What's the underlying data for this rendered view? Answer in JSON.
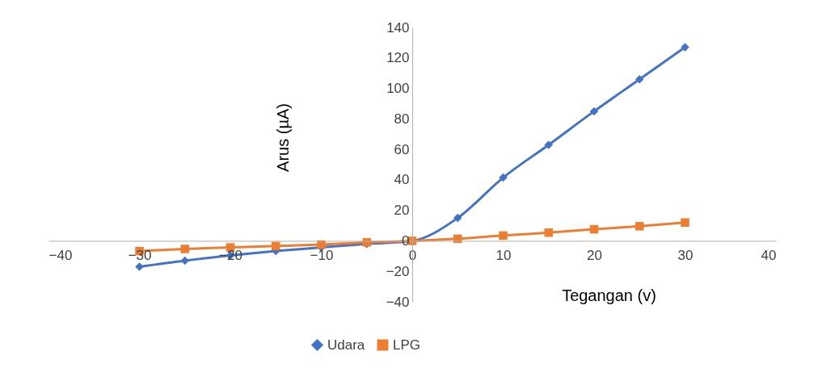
{
  "chart_data": {
    "type": "line",
    "xlabel": "Tegangan (v)",
    "ylabel": "Arus (µA)",
    "x": [
      -30,
      -25,
      -20,
      -15,
      -10,
      -5,
      0,
      5,
      10,
      15,
      20,
      25,
      30
    ],
    "series": [
      {
        "name": "Udara",
        "color": "#4472c4",
        "marker": "diamond",
        "values": [
          -17,
          -13,
          -9.6,
          -6.7,
          -4.3,
          -2,
          0,
          15,
          41.5,
          63,
          85,
          106,
          127
        ]
      },
      {
        "name": "LPG",
        "color": "#ed7d31",
        "marker": "square",
        "values": [
          -6.7,
          -5.3,
          -4.3,
          -3.4,
          -2.4,
          -1,
          0,
          1.4,
          3.5,
          5.4,
          7.6,
          9.6,
          12
        ]
      }
    ],
    "xlim": [
      -40,
      40
    ],
    "xticks": [
      -40,
      -30,
      -20,
      -10,
      0,
      10,
      20,
      30,
      40
    ],
    "ylim": [
      -40,
      140
    ],
    "yticks": [
      -40,
      -20,
      0,
      20,
      40,
      60,
      80,
      100,
      120,
      140
    ],
    "grid": false,
    "legend": "bottom",
    "line_style": "solid"
  }
}
